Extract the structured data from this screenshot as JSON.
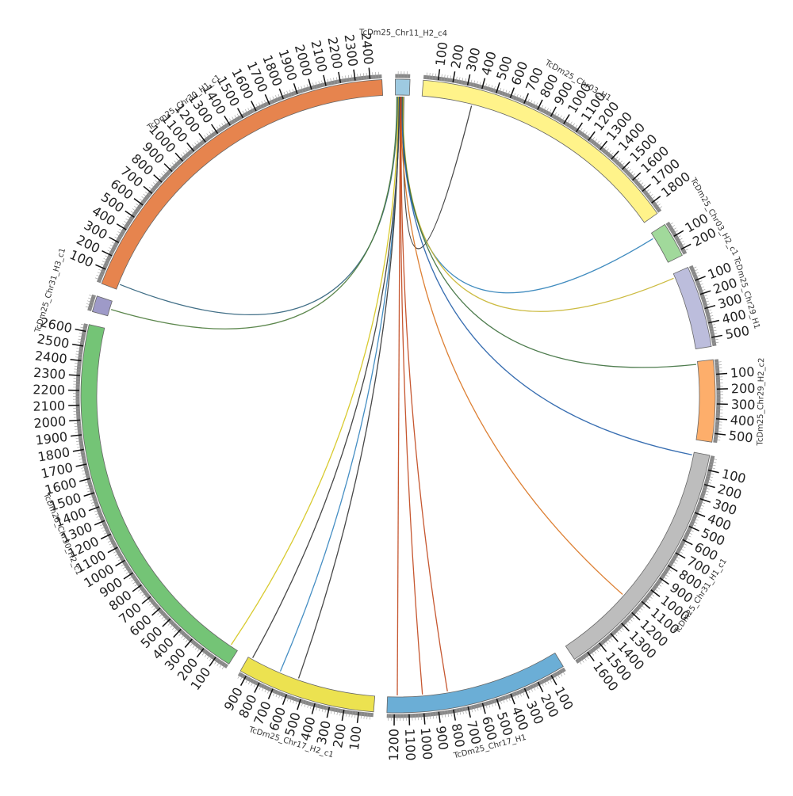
{
  "chromosomes": [
    {
      "name": "TcDm25_Chr11_H2_c4",
      "length": 100,
      "color": "#9ecae1",
      "ticks": []
    },
    {
      "name": "TcDm25_Chr03_H1",
      "length": 1880,
      "color": "#fff38a",
      "ticks": [
        100,
        200,
        300,
        400,
        500,
        600,
        700,
        800,
        900,
        1000,
        1100,
        1200,
        1300,
        1400,
        1500,
        1600,
        1700,
        1800
      ]
    },
    {
      "name": "TcDm25_Chr03_H2_c1",
      "length": 240,
      "color": "#a1d99b",
      "ticks": [
        100,
        200
      ]
    },
    {
      "name": "TcDm25_Chr29_H1",
      "length": 560,
      "color": "#bcbddc",
      "ticks": [
        100,
        200,
        300,
        400,
        500
      ]
    },
    {
      "name": "TcDm25_Chr29_H2_c2",
      "length": 560,
      "color": "#fdae6b",
      "ticks": [
        100,
        200,
        300,
        400,
        500
      ]
    },
    {
      "name": "TcDm25_Chr31_H1_c1",
      "length": 1700,
      "color": "#bdbdbd",
      "ticks": [
        100,
        200,
        300,
        400,
        500,
        600,
        700,
        800,
        900,
        1000,
        1100,
        1200,
        1300,
        1400,
        1500,
        1600
      ]
    },
    {
      "name": "TcDm25_Chr17_H1",
      "length": 1250,
      "color": "#6baed6",
      "ticks": [
        100,
        200,
        300,
        400,
        500,
        600,
        700,
        800,
        900,
        1000,
        1100,
        1200
      ]
    },
    {
      "name": "TcDm25_Chr17_H2_c1",
      "length": 950,
      "color": "#ece250",
      "ticks": [
        100,
        200,
        300,
        400,
        500,
        600,
        700,
        800,
        900
      ]
    },
    {
      "name": "TcDm25_Chr30_H2_c1",
      "length": 2650,
      "color": "#74c476",
      "ticks": [
        100,
        200,
        300,
        400,
        500,
        600,
        700,
        800,
        900,
        1000,
        1100,
        1200,
        1300,
        1400,
        1500,
        1600,
        1700,
        1800,
        1900,
        2000,
        2100,
        2200,
        2300,
        2400,
        2500,
        2600
      ]
    },
    {
      "name": "TcDm25_Chr31_H3_c1",
      "length": 110,
      "color": "#9e9ac8",
      "ticks": []
    },
    {
      "name": "TcDm25_Chr30_H1_c1",
      "length": 2480,
      "color": "#e6844e",
      "ticks": [
        100,
        200,
        300,
        400,
        500,
        600,
        700,
        800,
        900,
        1000,
        1100,
        1200,
        1300,
        1400,
        1500,
        1600,
        1700,
        1800,
        1900,
        2000,
        2100,
        2200,
        2300,
        2400
      ]
    }
  ],
  "links": [
    {
      "from": "TcDm25_Chr11_H2_c4",
      "from_pos": 60,
      "to": "TcDm25_Chr03_H1",
      "to_pos": 360,
      "color": "#333333"
    },
    {
      "from": "TcDm25_Chr11_H2_c4",
      "from_pos": 50,
      "to": "TcDm25_Chr03_H2_c1",
      "to_pos": 40,
      "color": "#2c7fb8"
    },
    {
      "from": "TcDm25_Chr11_H2_c4",
      "from_pos": 55,
      "to": "TcDm25_Chr29_H1",
      "to_pos": 30,
      "color": "#c7b42c"
    },
    {
      "from": "TcDm25_Chr11_H2_c4",
      "from_pos": 50,
      "to": "TcDm25_Chr29_H2_c2",
      "to_pos": 20,
      "color": "#3b6e3b"
    },
    {
      "from": "TcDm25_Chr11_H2_c4",
      "from_pos": 45,
      "to": "TcDm25_Chr31_H1_c1",
      "to_pos": 20,
      "color": "#225ea8"
    },
    {
      "from": "TcDm25_Chr11_H2_c4",
      "from_pos": 40,
      "to": "TcDm25_Chr31_H1_c1",
      "to_pos": 1150,
      "color": "#d9721e"
    },
    {
      "from": "TcDm25_Chr11_H2_c4",
      "from_pos": 35,
      "to": "TcDm25_Chr17_H1",
      "to_pos": 1180,
      "color": "#c0451a"
    },
    {
      "from": "TcDm25_Chr11_H2_c4",
      "from_pos": 38,
      "to": "TcDm25_Chr17_H1",
      "to_pos": 1000,
      "color": "#c0451a"
    },
    {
      "from": "TcDm25_Chr11_H2_c4",
      "from_pos": 42,
      "to": "TcDm25_Chr17_H1",
      "to_pos": 820,
      "color": "#c0451a"
    },
    {
      "from": "TcDm25_Chr11_H2_c4",
      "from_pos": 30,
      "to": "TcDm25_Chr17_H2_c1",
      "to_pos": 920,
      "color": "#333333"
    },
    {
      "from": "TcDm25_Chr11_H2_c4",
      "from_pos": 28,
      "to": "TcDm25_Chr17_H2_c1",
      "to_pos": 700,
      "color": "#3182bd"
    },
    {
      "from": "TcDm25_Chr11_H2_c4",
      "from_pos": 25,
      "to": "TcDm25_Chr17_H2_c1",
      "to_pos": 560,
      "color": "#333333"
    },
    {
      "from": "TcDm25_Chr11_H2_c4",
      "from_pos": 20,
      "to": "TcDm25_Chr30_H2_c1",
      "to_pos": 60,
      "color": "#d4c418"
    },
    {
      "from": "TcDm25_Chr11_H2_c4",
      "from_pos": 15,
      "to": "TcDm25_Chr30_H1_c1",
      "to_pos": 40,
      "color": "#2c5f7a"
    },
    {
      "from": "TcDm25_Chr11_H2_c4",
      "from_pos": 10,
      "to": "TcDm25_Chr31_H3_c1",
      "to_pos": 50,
      "color": "#4a7a3a"
    }
  ]
}
